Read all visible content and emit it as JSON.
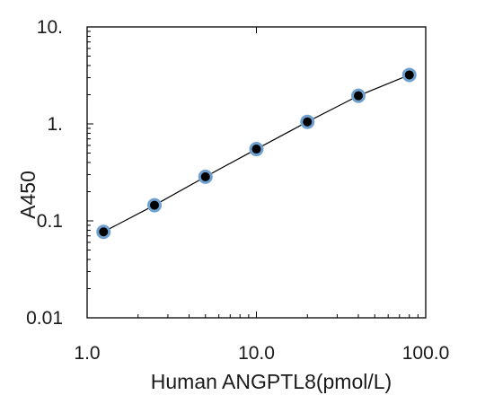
{
  "chart_data": {
    "type": "scatter",
    "xscale": "log",
    "yscale": "log",
    "xlabel": "Human ANGPTL8(pmol/L)",
    "ylabel": "A450",
    "xlim": [
      1.0,
      100.0
    ],
    "ylim": [
      0.01,
      10.0
    ],
    "x_tick_labels": [
      "1.0",
      "10.0",
      "100.0"
    ],
    "y_tick_labels": [
      "0.01",
      "0.1",
      "1.",
      "10."
    ],
    "x": [
      1.25,
      2.5,
      5,
      10,
      20,
      40,
      80
    ],
    "y": [
      0.077,
      0.145,
      0.285,
      0.55,
      1.05,
      1.95,
      3.2
    ],
    "fit_line": true,
    "grid": false,
    "legend": "none",
    "marker_fill_color": "#000000",
    "marker_edge_color": "#6fa0cf",
    "line_color": "#000000"
  }
}
